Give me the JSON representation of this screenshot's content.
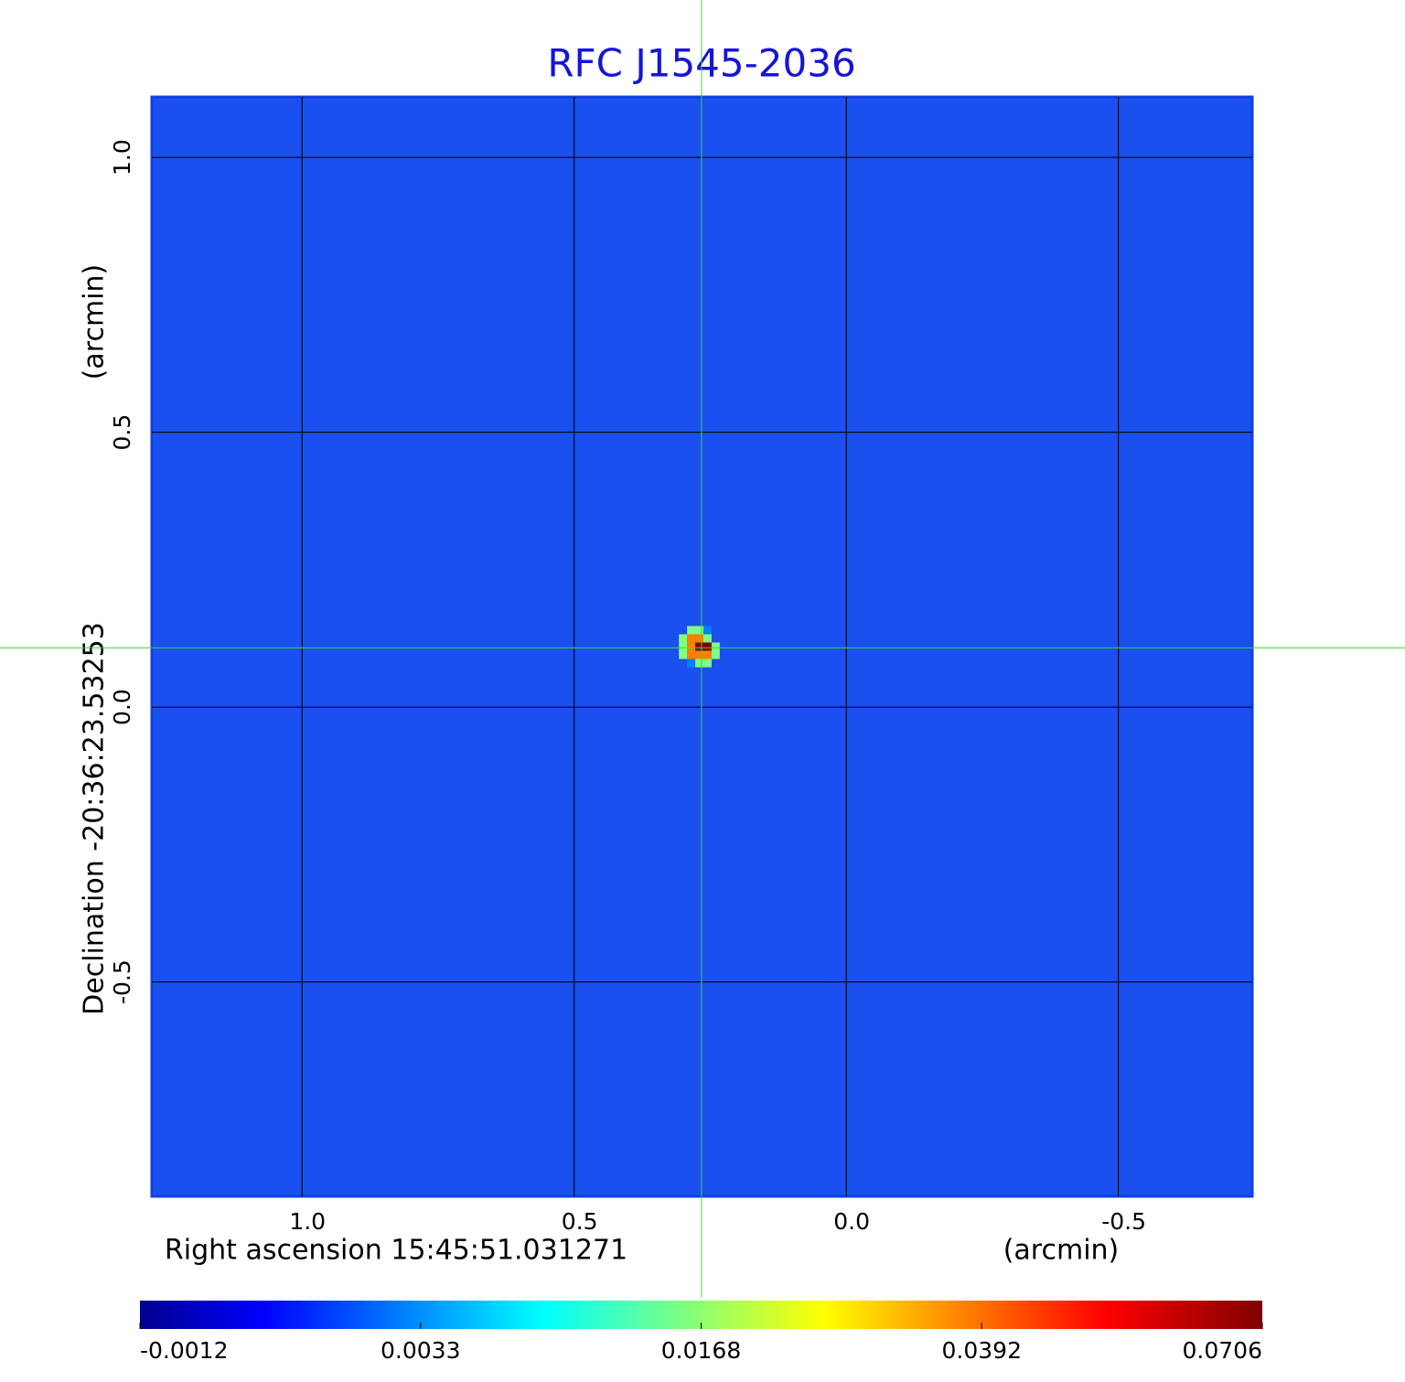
{
  "chart_data": {
    "type": "image",
    "title": "RFC J1545-2036",
    "xlabel": "Right ascension  15:45:51.031271",
    "xunit": "(arcmin)",
    "ylabel": "Declination  -20:36:23.53253",
    "yunit": "(arcmin)",
    "xlim": [
      1.276,
      -0.746
    ],
    "ylim": [
      -0.89,
      1.11
    ],
    "xticks": [
      {
        "value": 1,
        "label": "1.0"
      },
      0.5,
      {
        "value": 0,
        "label": "0.0"
      },
      -0.5
    ],
    "yticks": [
      {
        "value": 1,
        "label": "1.0"
      },
      0.5,
      {
        "value": 0,
        "label": "0.0"
      },
      -0.5
    ],
    "grid": true,
    "background_color": "#1a4ff0",
    "title_color": "#1515d8",
    "crosshair": {
      "x": 0.266,
      "y": 0.108,
      "color": "#33dd33"
    },
    "pixels": {
      "x": [
        0.285,
        0.27,
        0.255,
        0.3,
        0.285,
        0.27,
        0.255,
        0.3,
        0.285,
        0.27,
        0.255,
        0.24,
        0.3,
        0.285,
        0.27,
        0.255,
        0.24,
        0.285,
        0.27,
        0.255
      ],
      "y": [
        0.14,
        0.14,
        0.14,
        0.125,
        0.125,
        0.125,
        0.125,
        0.11,
        0.11,
        0.11,
        0.11,
        0.11,
        0.095,
        0.095,
        0.095,
        0.095,
        0.095,
        0.08,
        0.08,
        0.08
      ],
      "values": [
        0.0168,
        0.0168,
        0.0033,
        0.0168,
        0.0392,
        0.0392,
        0.0168,
        0.0168,
        0.0392,
        0.0706,
        0.0706,
        0.0168,
        0.0168,
        0.0392,
        0.0392,
        0.0392,
        0.0168,
        0.0033,
        0.0168,
        0.0168
      ]
    },
    "colorbar": {
      "ticks": [
        -0.0012,
        0.0033,
        0.0168,
        0.0392,
        0.0706
      ]
    }
  }
}
